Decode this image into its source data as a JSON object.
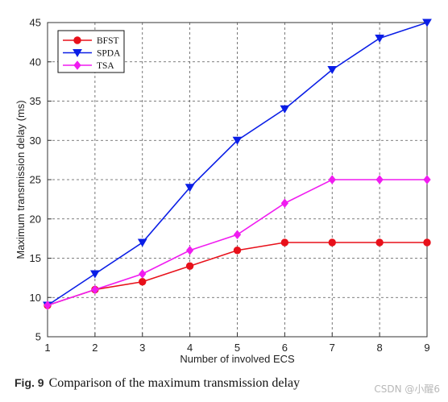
{
  "chart_data": {
    "type": "line",
    "title": "",
    "xlabel": "Number of involved ECS",
    "ylabel": "Maximum transmission delay (ms)",
    "x": [
      1,
      2,
      3,
      4,
      5,
      6,
      7,
      8,
      9
    ],
    "xlim": [
      1,
      9
    ],
    "ylim": [
      5,
      45
    ],
    "xticks": [
      "1",
      "2",
      "3",
      "4",
      "5",
      "6",
      "7",
      "8",
      "9"
    ],
    "yticks": [
      "5",
      "10",
      "15",
      "20",
      "25",
      "30",
      "35",
      "40",
      "45"
    ],
    "grid": true,
    "legend_position": "top-left",
    "series": [
      {
        "name": "BFST",
        "values": [
          9,
          11,
          12,
          14,
          16,
          17,
          17,
          17,
          17
        ],
        "color": "#e8101a",
        "marker": "circle"
      },
      {
        "name": "SPDA",
        "values": [
          9,
          13,
          17,
          24,
          30,
          34,
          39,
          43,
          45
        ],
        "color": "#0a1ee6",
        "marker": "triangle-down"
      },
      {
        "name": "TSA",
        "values": [
          9,
          11,
          13,
          16,
          18,
          22,
          25,
          25,
          25
        ],
        "color": "#f01cf0",
        "marker": "diamond"
      }
    ]
  },
  "caption": {
    "label": "Fig. 9",
    "text": "Comparison of the maximum transmission delay"
  },
  "watermark": "CSDN @小醒6"
}
